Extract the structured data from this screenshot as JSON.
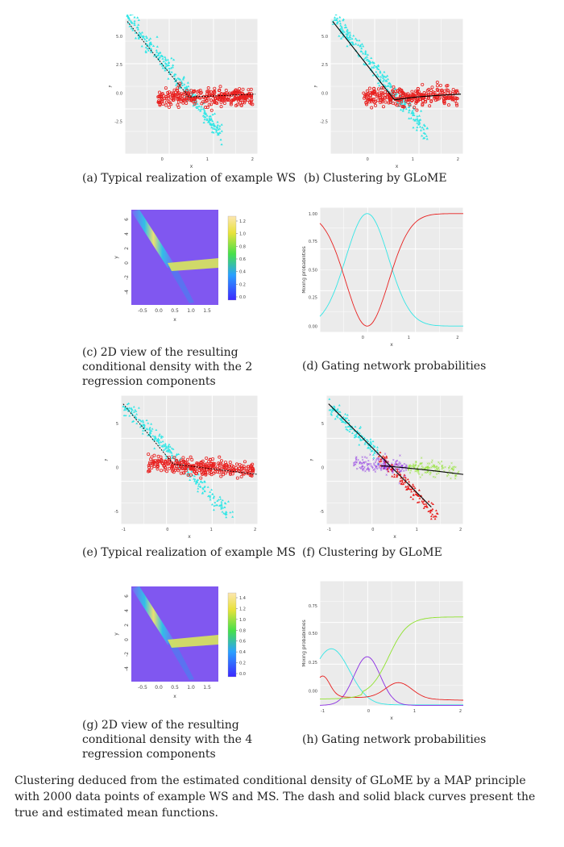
{
  "panels": [
    {
      "id": "a",
      "caption_label": "(a)",
      "caption_text": "Typical realization of example WS",
      "ticks_x": [
        "0",
        "1",
        "2"
      ],
      "ticks_y": [
        "5.0",
        "2.5",
        "0.0",
        "-2.5"
      ],
      "xlabel": "x",
      "ylabel": "y"
    },
    {
      "id": "b",
      "caption_label": "(b)",
      "caption_text": "Clustering by GLoME",
      "ticks_x": [
        "0",
        "1",
        "2"
      ],
      "ticks_y": [
        "5.0",
        "2.5",
        "0.0",
        "-2.5"
      ],
      "xlabel": "x",
      "ylabel": "y"
    },
    {
      "id": "c",
      "caption_label": "(c)",
      "caption_text": "2D view of the resulting conditional density with the 2 regression components",
      "ticks_x": [
        "-0.5",
        "0.0",
        "0.5",
        "1.0",
        "1.5"
      ],
      "ticks_y": [
        "6",
        "4",
        "2",
        "0",
        "-2",
        "-4"
      ],
      "colorbar": [
        "1.2",
        "1.0",
        "0.8",
        "0.6",
        "0.4",
        "0.2",
        "0.0"
      ],
      "xlabel": "x",
      "ylabel": "y"
    },
    {
      "id": "d",
      "caption_label": "(d)",
      "caption_text": "Gating network probabilities",
      "ticks_x": [
        "0",
        "1",
        "2"
      ],
      "ticks_y": [
        "1.00",
        "0.75",
        "0.50",
        "0.25",
        "0.00"
      ],
      "xlabel": "x",
      "ylabel": "Mixing probabilities"
    },
    {
      "id": "e",
      "caption_label": "(e)",
      "caption_text": "Typical realization of example MS",
      "ticks_x": [
        "-1",
        "0",
        "1",
        "2"
      ],
      "ticks_y": [
        "5",
        "0",
        "-5"
      ],
      "xlabel": "x",
      "ylabel": "y"
    },
    {
      "id": "f",
      "caption_label": "(f)",
      "caption_text": "Clustering by GLoME",
      "ticks_x": [
        "-1",
        "0",
        "1",
        "2"
      ],
      "ticks_y": [
        "5",
        "0",
        "-5"
      ],
      "xlabel": "x",
      "ylabel": "y"
    },
    {
      "id": "g",
      "caption_label": "(g)",
      "caption_text": "2D view of the resulting conditional density with the 4 regression components",
      "ticks_x": [
        "-0.5",
        "0.0",
        "0.5",
        "1.0",
        "1.5"
      ],
      "ticks_y": [
        "6",
        "4",
        "2",
        "0",
        "-2",
        "-4"
      ],
      "colorbar": [
        "1.4",
        "1.2",
        "1.0",
        "0.8",
        "0.6",
        "0.4",
        "0.2",
        "0.0"
      ],
      "xlabel": "x",
      "ylabel": "y"
    },
    {
      "id": "h",
      "caption_label": "(h)",
      "caption_text": "Gating network probabilities",
      "ticks_x": [
        "-1",
        "0",
        "1",
        "2"
      ],
      "ticks_y": [
        "0.75",
        "0.50",
        "0.25",
        "0.00"
      ],
      "xlabel": "x",
      "ylabel": "Mixing probabilities"
    }
  ],
  "colors": {
    "cyan": "#33e6e6",
    "red": "#e8201f",
    "purple": "#8a2be2",
    "green": "#8ee22c",
    "panel_bg": "#ebebeb",
    "density_bg": "#8057f0"
  },
  "figure_caption": "Clustering deduced from the estimated conditional density of GLoME by a MAP principle with 2000 data points of example WS and MS. The dash and solid black curves present the true and estimated mean functions."
}
